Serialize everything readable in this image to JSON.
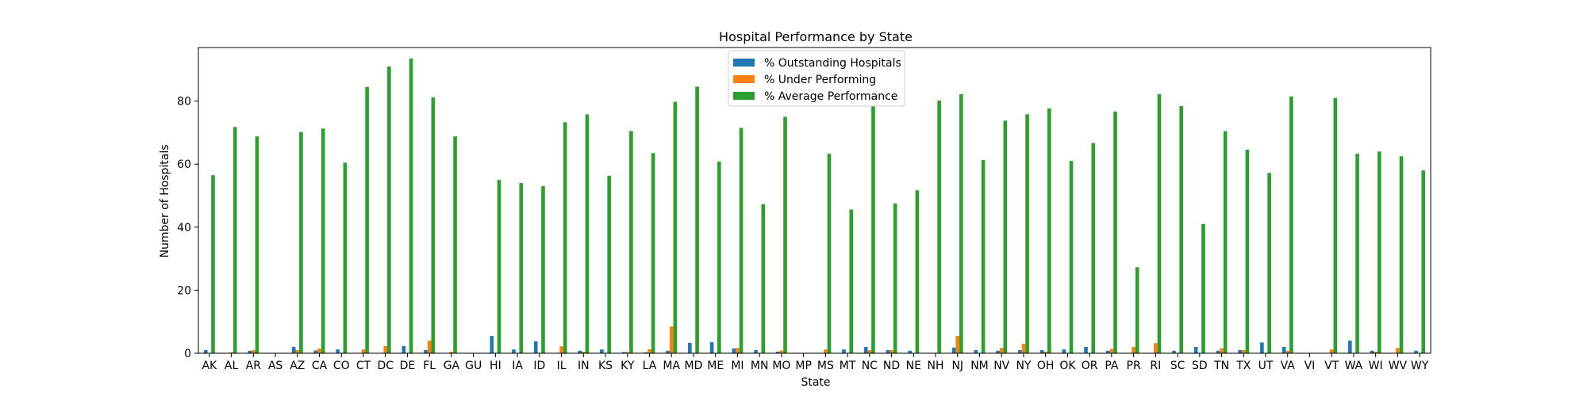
{
  "chart_data": {
    "type": "bar",
    "title": "Hospital Performance by State",
    "xlabel": "State",
    "ylabel": "Number of Hospitals",
    "ylim": [
      0,
      97
    ],
    "yticks": [
      0,
      20,
      40,
      60,
      80
    ],
    "grid": false,
    "legend_position": "top-center",
    "categories": [
      "AK",
      "AL",
      "AR",
      "AS",
      "AZ",
      "CA",
      "CO",
      "CT",
      "DC",
      "DE",
      "FL",
      "GA",
      "GU",
      "HI",
      "IA",
      "ID",
      "IL",
      "IN",
      "KS",
      "KY",
      "LA",
      "MA",
      "MD",
      "ME",
      "MI",
      "MN",
      "MO",
      "MP",
      "MS",
      "MT",
      "NC",
      "ND",
      "NE",
      "NH",
      "NJ",
      "NM",
      "NV",
      "NY",
      "OH",
      "OK",
      "OR",
      "PA",
      "PR",
      "RI",
      "SC",
      "SD",
      "TN",
      "TX",
      "UT",
      "VA",
      "VI",
      "VT",
      "WA",
      "WI",
      "WV",
      "WY"
    ],
    "series": [
      {
        "name": "% Outstanding Hospitals",
        "color": "#1f77b4",
        "values": [
          1.0,
          0.0,
          0.8,
          0.0,
          2.0,
          0.9,
          1.2,
          0.0,
          0.0,
          2.3,
          1.0,
          0.0,
          0.0,
          5.5,
          1.2,
          3.8,
          0.0,
          0.8,
          1.2,
          0.4,
          0.3,
          0.8,
          3.3,
          3.5,
          1.5,
          1.0,
          0.5,
          0.0,
          0.0,
          1.2,
          2.0,
          1.0,
          0.8,
          0.0,
          1.8,
          1.0,
          0.8,
          1.0,
          1.0,
          1.2,
          2.0,
          0.8,
          0.0,
          0.0,
          0.8,
          2.0,
          0.8,
          1.0,
          3.4,
          2.0,
          0.0,
          0.0,
          4.0,
          0.8,
          0.0,
          0.8
        ]
      },
      {
        "name": "% Under Performing",
        "color": "#ff7f0e",
        "values": [
          0.0,
          0.3,
          1.0,
          0.0,
          1.0,
          1.5,
          0.0,
          1.2,
          2.3,
          0.0,
          4.0,
          0.5,
          0.0,
          0.0,
          0.0,
          0.0,
          2.2,
          0.5,
          0.0,
          0.4,
          1.3,
          8.5,
          0.0,
          0.0,
          1.7,
          0.0,
          0.9,
          0.0,
          1.2,
          0.0,
          1.0,
          1.0,
          0.0,
          0.0,
          5.5,
          0.0,
          1.7,
          3.0,
          0.5,
          0.0,
          0.0,
          1.4,
          2.0,
          3.2,
          0.0,
          0.0,
          1.6,
          1.0,
          0.0,
          0.8,
          0.0,
          1.2,
          0.0,
          0.5,
          1.7,
          0.0
        ]
      },
      {
        "name": "% Average Performance",
        "color": "#2ca02c",
        "values": [
          56.5,
          71.8,
          68.8,
          0.0,
          70.2,
          71.3,
          60.5,
          84.5,
          91.0,
          93.5,
          81.2,
          68.8,
          0.0,
          55.0,
          54.0,
          53.0,
          73.3,
          75.8,
          56.3,
          70.5,
          63.5,
          79.8,
          84.6,
          60.8,
          71.5,
          47.3,
          75.0,
          0.0,
          63.3,
          45.6,
          78.5,
          47.5,
          51.7,
          80.2,
          82.2,
          61.3,
          73.8,
          75.8,
          77.7,
          61.0,
          66.7,
          76.7,
          27.3,
          82.2,
          78.4,
          41.0,
          70.5,
          64.6,
          57.2,
          81.5,
          0.0,
          81.0,
          63.3,
          64.0,
          62.5,
          58.0
        ]
      }
    ]
  }
}
